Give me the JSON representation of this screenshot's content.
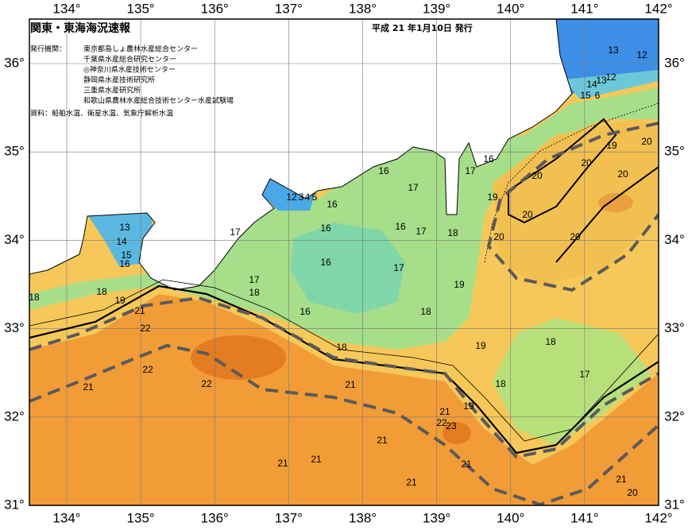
{
  "header": {
    "title": "関東・東海海況速報",
    "date": "平成 21 年1月10日 発行",
    "issuer_label": "発行機関：",
    "issuers": [
      "東京都島しょ農林水産総合センター",
      "千葉県水産総合研究センター",
      "◎神奈川県水産技術センター",
      "静岡県水産技術研究所",
      "三重県水産研究所",
      "和歌山県農林水産総合技術センター水産試験場"
    ],
    "source": "資料：船舶水温、衛星水温、気象庁解析水温"
  },
  "map": {
    "lon_ticks": [
      {
        "value": 134,
        "label": "134°"
      },
      {
        "value": 135,
        "label": "135°"
      },
      {
        "value": 136,
        "label": "136°"
      },
      {
        "value": 137,
        "label": "137°"
      },
      {
        "value": 138,
        "label": "138°"
      },
      {
        "value": 139,
        "label": "139°"
      },
      {
        "value": 140,
        "label": "140°"
      },
      {
        "value": 141,
        "label": "141°"
      },
      {
        "value": 142,
        "label": "142°"
      }
    ],
    "lat_ticks": [
      {
        "value": 31,
        "label": "31°"
      },
      {
        "value": 32,
        "label": "32°"
      },
      {
        "value": 33,
        "label": "33°"
      },
      {
        "value": 34,
        "label": "34°"
      },
      {
        "value": 35,
        "label": "35°"
      },
      {
        "value": 36,
        "label": "36°"
      }
    ],
    "contour_labels": [
      13,
      12,
      14,
      13,
      12,
      15,
      6,
      19,
      20,
      20,
      20,
      20,
      19,
      20,
      20,
      20,
      16,
      17,
      16,
      17,
      16,
      12,
      3,
      4,
      5,
      17,
      16,
      16,
      17,
      18,
      16,
      17,
      17,
      18,
      19,
      13,
      14,
      15,
      16,
      18,
      18,
      19,
      21,
      22,
      16,
      18,
      18,
      19,
      18,
      17,
      22,
      22,
      21,
      21,
      18,
      19,
      21,
      22,
      23,
      21,
      21,
      21,
      21,
      21,
      21,
      20
    ]
  }
}
